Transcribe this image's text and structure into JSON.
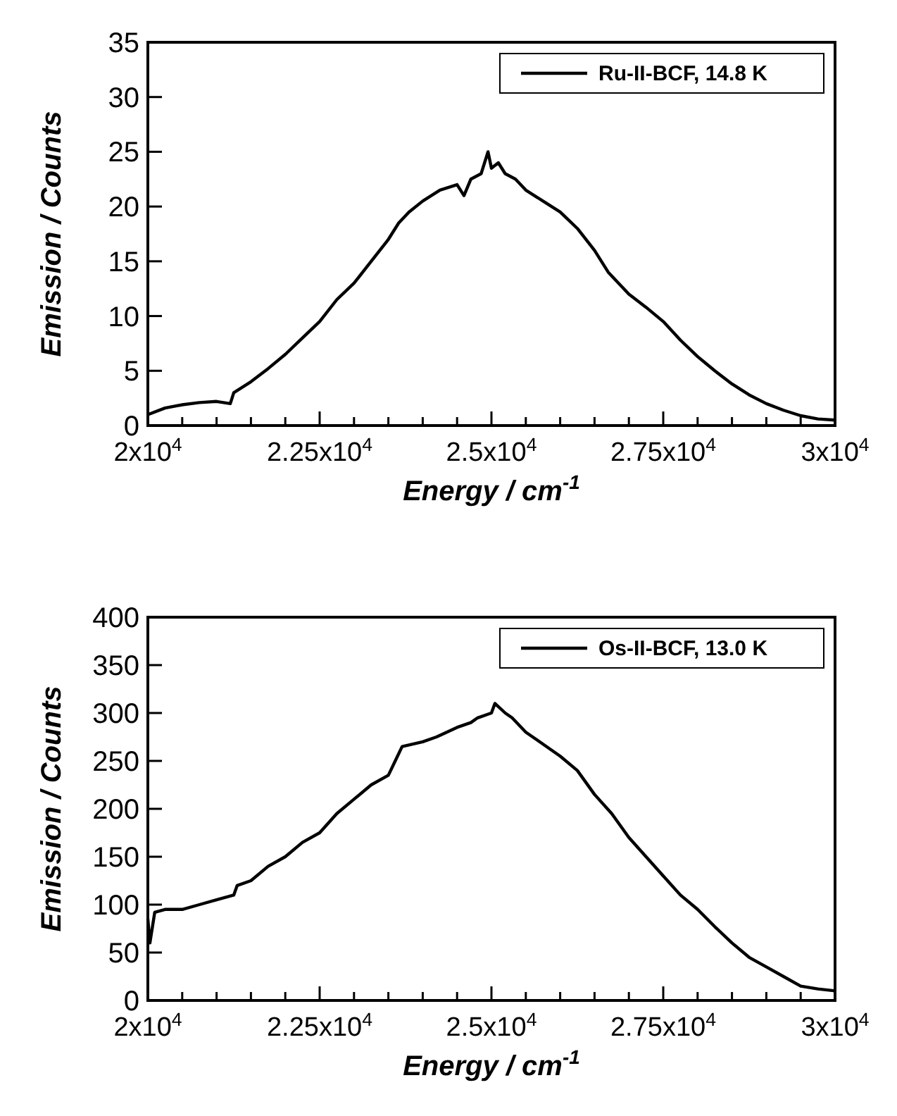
{
  "chart_data": [
    {
      "type": "line",
      "xlabel": "Energy / cm$^{-1}$",
      "ylabel": "Emission / Counts",
      "legend": "top right",
      "grid": false,
      "line_style": "solid",
      "xlim": [
        20000,
        30000
      ],
      "ylim": [
        0,
        35
      ],
      "xticks": [
        {
          "value": 20000,
          "label": "2x10$^{4}$"
        },
        {
          "value": 20500,
          "label": null
        },
        {
          "value": 21000,
          "label": null
        },
        {
          "value": 21500,
          "label": null
        },
        {
          "value": 22000,
          "label": null
        },
        {
          "value": 22500,
          "label": "2.25x10$^{4}$"
        },
        {
          "value": 23000,
          "label": null
        },
        {
          "value": 23500,
          "label": null
        },
        {
          "value": 24000,
          "label": null
        },
        {
          "value": 24500,
          "label": null
        },
        {
          "value": 25000,
          "label": "2.5x10$^{4}$"
        },
        {
          "value": 25500,
          "label": null
        },
        {
          "value": 26000,
          "label": null
        },
        {
          "value": 26500,
          "label": null
        },
        {
          "value": 27000,
          "label": null
        },
        {
          "value": 27500,
          "label": "2.75x10$^{4}$"
        },
        {
          "value": 28000,
          "label": null
        },
        {
          "value": 28500,
          "label": null
        },
        {
          "value": 29000,
          "label": null
        },
        {
          "value": 29500,
          "label": null
        },
        {
          "value": 30000,
          "label": "3x10$^{4}$"
        }
      ],
      "yticks": [
        0,
        5,
        10,
        15,
        20,
        25,
        30,
        35
      ],
      "series": [
        {
          "name": "Ru-II-BCF, 14.8 K",
          "color": "#000000",
          "x": [
            20000,
            20250,
            20500,
            20750,
            21000,
            21200,
            21250,
            21500,
            21750,
            22000,
            22250,
            22500,
            22750,
            23000,
            23250,
            23500,
            23650,
            23800,
            24000,
            24250,
            24500,
            24600,
            24700,
            24850,
            24950,
            25000,
            25100,
            25200,
            25350,
            25500,
            25750,
            26000,
            26250,
            26500,
            26700,
            26850,
            27000,
            27250,
            27500,
            27750,
            28000,
            28250,
            28500,
            28750,
            29000,
            29250,
            29500,
            29750,
            30000
          ],
          "values": [
            1.0,
            1.6,
            1.9,
            2.1,
            2.2,
            2.0,
            3.0,
            4.0,
            5.2,
            6.5,
            8.0,
            9.5,
            11.5,
            13.0,
            15.0,
            17.0,
            18.5,
            19.5,
            20.5,
            21.5,
            22.0,
            21.0,
            22.5,
            23.0,
            25.0,
            23.5,
            24.0,
            23.0,
            22.5,
            21.5,
            20.5,
            19.5,
            18.0,
            16.0,
            14.0,
            13.0,
            12.0,
            10.8,
            9.5,
            7.8,
            6.3,
            5.0,
            3.8,
            2.8,
            2.0,
            1.4,
            0.9,
            0.6,
            0.5
          ]
        }
      ]
    },
    {
      "type": "line",
      "xlabel": "Energy / cm$^{-1}$",
      "ylabel": "Emission / Counts",
      "legend": "top right",
      "grid": false,
      "line_style": "solid",
      "xlim": [
        20000,
        30000
      ],
      "ylim": [
        0,
        400
      ],
      "xticks": [
        {
          "value": 20000,
          "label": "2x10$^{4}$"
        },
        {
          "value": 20500,
          "label": null
        },
        {
          "value": 21000,
          "label": null
        },
        {
          "value": 21500,
          "label": null
        },
        {
          "value": 22000,
          "label": null
        },
        {
          "value": 22500,
          "label": "2.25x10$^{4}$"
        },
        {
          "value": 23000,
          "label": null
        },
        {
          "value": 23500,
          "label": null
        },
        {
          "value": 24000,
          "label": null
        },
        {
          "value": 24500,
          "label": null
        },
        {
          "value": 25000,
          "label": "2.5x10$^{4}$"
        },
        {
          "value": 25500,
          "label": null
        },
        {
          "value": 26000,
          "label": null
        },
        {
          "value": 26500,
          "label": null
        },
        {
          "value": 27000,
          "label": null
        },
        {
          "value": 27500,
          "label": "2.75x10$^{4}$"
        },
        {
          "value": 28000,
          "label": null
        },
        {
          "value": 28500,
          "label": null
        },
        {
          "value": 29000,
          "label": null
        },
        {
          "value": 29500,
          "label": null
        },
        {
          "value": 30000,
          "label": "3x10$^{4}$"
        }
      ],
      "yticks": [
        0,
        50,
        100,
        150,
        200,
        250,
        300,
        350,
        400
      ],
      "series": [
        {
          "name": "Os-II-BCF, 13.0 K",
          "color": "#000000",
          "x": [
            20000,
            20030,
            20100,
            20250,
            20500,
            20750,
            21000,
            21250,
            21300,
            21500,
            21750,
            22000,
            22250,
            22500,
            22750,
            23000,
            23250,
            23500,
            23600,
            23700,
            24000,
            24200,
            24500,
            24700,
            24800,
            25000,
            25050,
            25200,
            25300,
            25500,
            25700,
            26000,
            26250,
            26500,
            26750,
            27000,
            27250,
            27500,
            27750,
            28000,
            28250,
            28500,
            28750,
            29000,
            29250,
            29500,
            29750,
            30000
          ],
          "values": [
            85,
            60,
            92,
            95,
            95,
            100,
            105,
            110,
            120,
            125,
            140,
            150,
            165,
            175,
            195,
            210,
            225,
            235,
            250,
            265,
            270,
            275,
            285,
            290,
            295,
            300,
            310,
            300,
            295,
            280,
            270,
            255,
            240,
            215,
            195,
            170,
            150,
            130,
            110,
            95,
            77,
            60,
            45,
            35,
            25,
            15,
            12,
            10
          ]
        }
      ]
    }
  ]
}
